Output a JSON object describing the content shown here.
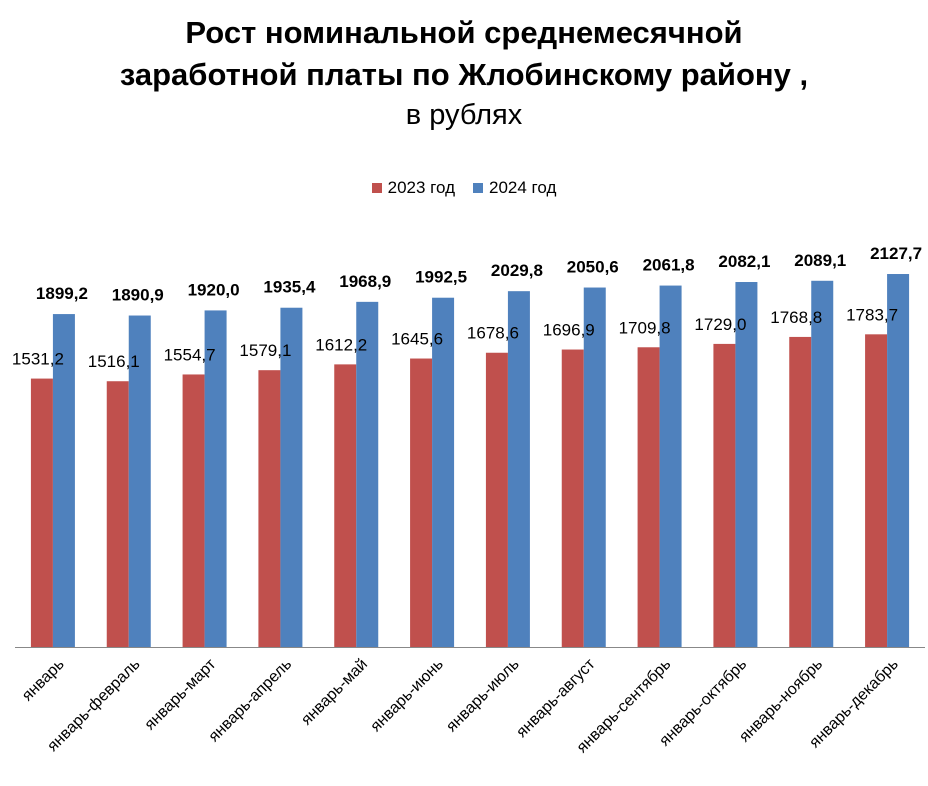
{
  "title": {
    "line1": "Рост номинальной среднемесячной",
    "line2": "заработной платы по Жлобинскому району ,",
    "line3": "в рублях"
  },
  "chart_data": {
    "type": "bar",
    "categories": [
      "январь",
      "январь-февраль",
      "январь-март",
      "январь-апрель",
      "январь-май",
      "январь-июнь",
      "январь-июль",
      "январь-август",
      "январь-сентябрь",
      "январь-октябрь",
      "январь-ноябрь",
      "январь-декабрь"
    ],
    "series": [
      {
        "name": "2023 год",
        "color": "#c0504d",
        "values": [
          1531.2,
          1516.1,
          1554.7,
          1579.1,
          1612.2,
          1645.6,
          1678.6,
          1696.9,
          1709.8,
          1729.0,
          1768.8,
          1783.7
        ],
        "labels": [
          "1531,2",
          "1516,1",
          "1554,7",
          "1579,1",
          "1612,2",
          "1645,6",
          "1678,6",
          "1696,9",
          "1709,8",
          "1729,0",
          "1768,8",
          "1783,7"
        ]
      },
      {
        "name": "2024 год",
        "color": "#4f81bd",
        "values": [
          1899.2,
          1890.9,
          1920.0,
          1935.4,
          1968.9,
          1992.5,
          2029.8,
          2050.6,
          2061.8,
          2082.1,
          2089.1,
          2127.7
        ],
        "labels": [
          "1899,2",
          "1890,9",
          "1920,0",
          "1935,4",
          "1968,9",
          "1992,5",
          "2029,8",
          "2050,6",
          "2061,8",
          "2082,1",
          "2089,1",
          "2127,7"
        ]
      }
    ],
    "ylim": [
      0,
      2200
    ],
    "grid": false,
    "legend": "top"
  }
}
